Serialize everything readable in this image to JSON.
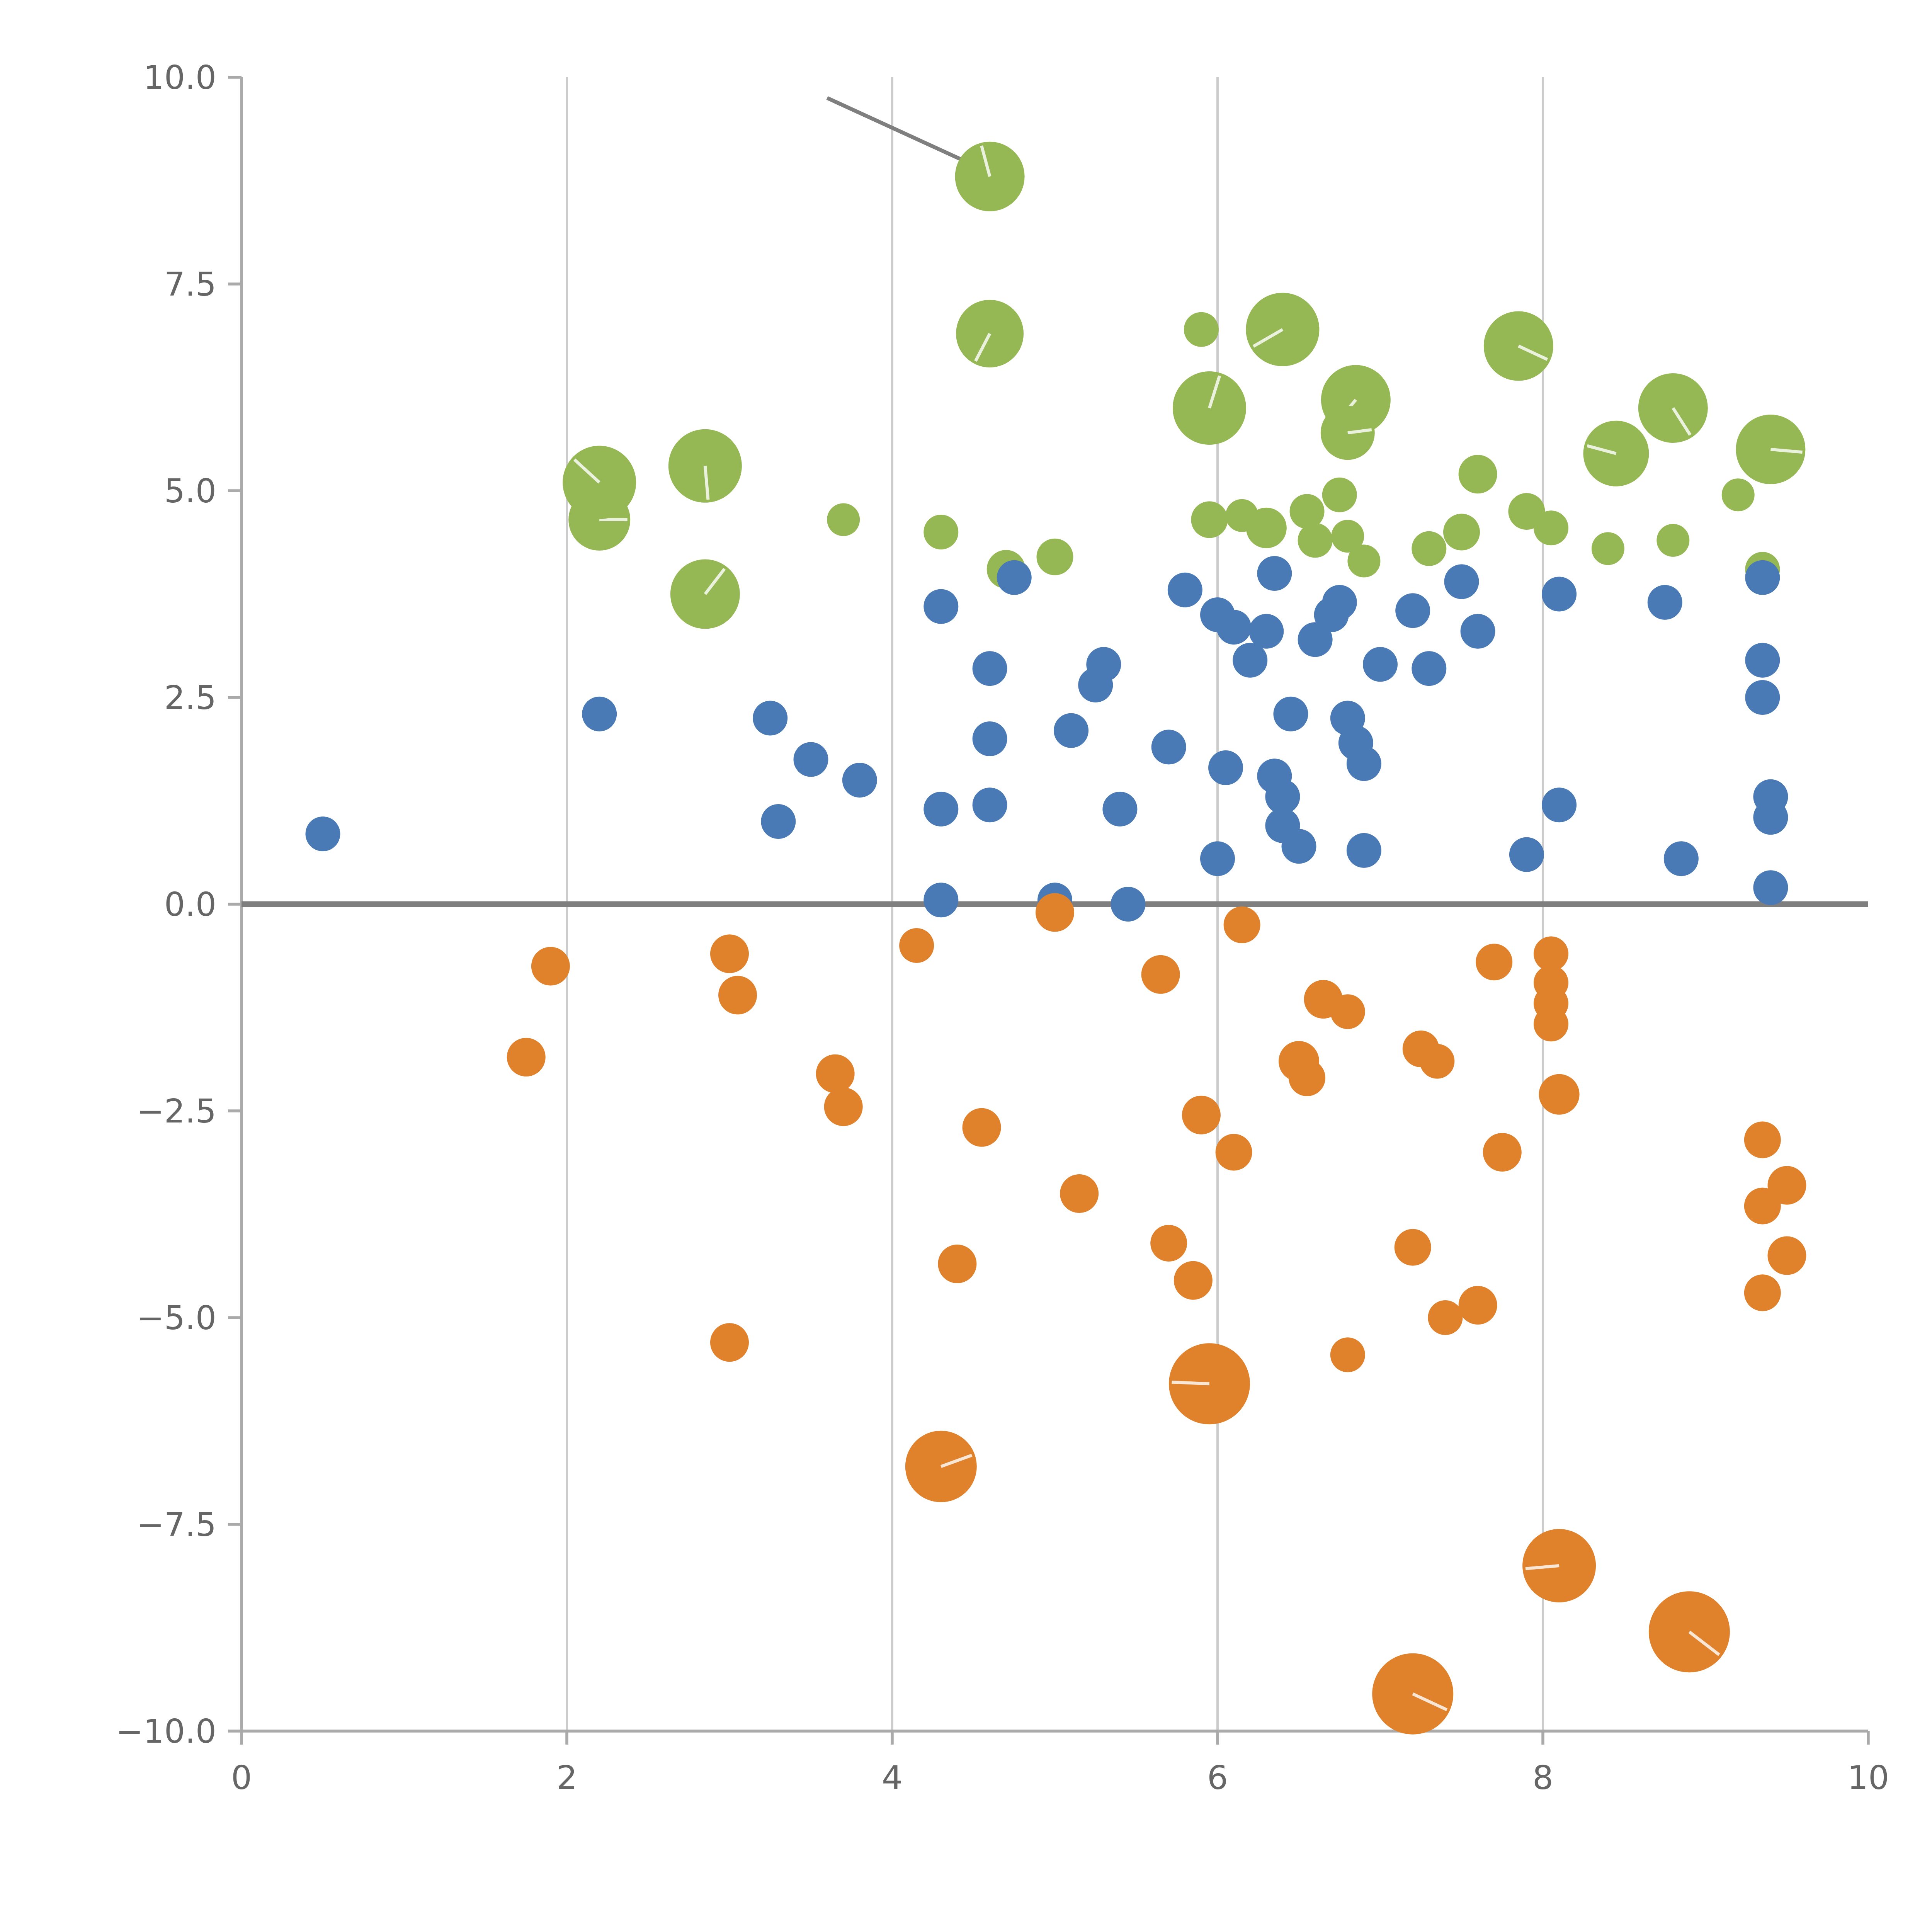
{
  "chart_data": {
    "type": "scatter",
    "title": "",
    "subtitle": "",
    "xlabel": "",
    "ylabel": "",
    "xlim": [
      0,
      10
    ],
    "ylim": [
      -10,
      10
    ],
    "grid": "vertical-only",
    "legend": "none",
    "x_ticks": [
      0,
      2,
      4,
      6,
      8,
      10
    ],
    "x_tick_labels": [
      "0",
      "2",
      "4",
      "6",
      "8",
      "10"
    ],
    "y_ticks": [
      -10,
      -7.5,
      -5,
      -2.5,
      0,
      2.5,
      5,
      7.5,
      10
    ],
    "y_tick_labels": [
      "−10.0",
      "−7.5",
      "−5.0",
      "−2.5",
      "0.0",
      "2.5",
      "5.0",
      "7.5",
      "10.0"
    ],
    "gridlines_x": [
      2,
      4,
      6,
      8
    ],
    "colors": {
      "grid": "#cccccc",
      "axis": "#aaaaaa",
      "tick_label": "#666666",
      "zero_line": "#7f7f7f",
      "annotation": "#7f7f7f",
      "green": "#95b854",
      "blue": "#4a7ab5",
      "orange": "#e0812c",
      "background": "#ffffff"
    },
    "zero_line": {
      "y": 0,
      "width": 3
    },
    "annotation_line": {
      "x1": 3.6,
      "y1": 9.75,
      "x2": 4.52,
      "y2": 8.92
    },
    "series": [
      {
        "name": "green",
        "color": "#95b854",
        "points": [
          [
            2.2,
            4.65,
            16
          ],
          [
            2.2,
            5.1,
            19
          ],
          [
            2.85,
            5.3,
            19
          ],
          [
            2.85,
            3.75,
            18
          ],
          [
            3.7,
            4.65,
            8.5
          ],
          [
            4.3,
            4.5,
            9
          ],
          [
            4.6,
            8.8,
            18
          ],
          [
            4.6,
            6.9,
            17.5
          ],
          [
            4.7,
            4.05,
            10
          ],
          [
            5.0,
            4.2,
            9.5
          ],
          [
            5.9,
            6.95,
            9
          ],
          [
            5.95,
            6.0,
            19
          ],
          [
            6.4,
            6.95,
            19
          ],
          [
            5.95,
            4.65,
            9.5
          ],
          [
            6.15,
            4.7,
            8.5
          ],
          [
            6.3,
            4.55,
            10.5
          ],
          [
            6.55,
            4.75,
            9
          ],
          [
            6.6,
            4.4,
            9
          ],
          [
            6.75,
            4.95,
            9
          ],
          [
            6.8,
            4.45,
            8.5
          ],
          [
            6.85,
            6.1,
            18
          ],
          [
            6.8,
            5.7,
            14
          ],
          [
            6.9,
            4.15,
            8.5
          ],
          [
            7.3,
            4.3,
            9
          ],
          [
            7.5,
            4.5,
            9.5
          ],
          [
            7.6,
            5.2,
            10
          ],
          [
            7.85,
            6.75,
            18
          ],
          [
            7.9,
            4.75,
            9.5
          ],
          [
            8.05,
            4.55,
            9
          ],
          [
            8.4,
            4.3,
            8.5
          ],
          [
            8.45,
            5.45,
            17
          ],
          [
            8.8,
            6.0,
            18
          ],
          [
            8.8,
            4.4,
            8.5
          ],
          [
            9.2,
            4.95,
            8.5
          ],
          [
            9.4,
            5.5,
            18
          ],
          [
            9.35,
            4.05,
            9
          ]
        ]
      },
      {
        "name": "blue",
        "color": "#4a7ab5",
        "points": [
          [
            0.5,
            0.85,
            9
          ],
          [
            2.2,
            2.3,
            9
          ],
          [
            3.25,
            2.25,
            9
          ],
          [
            3.3,
            1.0,
            9
          ],
          [
            3.5,
            1.75,
            9
          ],
          [
            3.8,
            1.5,
            9
          ],
          [
            4.3,
            3.6,
            9
          ],
          [
            4.3,
            1.15,
            9
          ],
          [
            4.3,
            0.05,
            9
          ],
          [
            4.6,
            2.85,
            9
          ],
          [
            4.6,
            2.0,
            9
          ],
          [
            4.6,
            1.2,
            9
          ],
          [
            4.75,
            3.95,
            9
          ],
          [
            5.0,
            0.05,
            9
          ],
          [
            5.1,
            2.1,
            9
          ],
          [
            5.25,
            2.65,
            9
          ],
          [
            5.3,
            2.9,
            9
          ],
          [
            5.4,
            1.15,
            9
          ],
          [
            5.45,
            0.0,
            9
          ],
          [
            5.7,
            1.9,
            9
          ],
          [
            5.8,
            3.8,
            9
          ],
          [
            6.0,
            3.5,
            9
          ],
          [
            6.0,
            0.55,
            9
          ],
          [
            6.05,
            1.65,
            9
          ],
          [
            6.1,
            3.35,
            9
          ],
          [
            6.2,
            2.95,
            9
          ],
          [
            6.3,
            3.3,
            9
          ],
          [
            6.35,
            4.0,
            9
          ],
          [
            6.35,
            1.55,
            9
          ],
          [
            6.4,
            1.3,
            9
          ],
          [
            6.4,
            0.95,
            9
          ],
          [
            6.45,
            2.3,
            9
          ],
          [
            6.5,
            0.7,
            9
          ],
          [
            6.6,
            3.2,
            9
          ],
          [
            6.7,
            3.5,
            9
          ],
          [
            6.75,
            3.65,
            9
          ],
          [
            6.8,
            2.25,
            9
          ],
          [
            6.85,
            1.95,
            9
          ],
          [
            6.9,
            1.7,
            9
          ],
          [
            6.9,
            0.65,
            9
          ],
          [
            7.0,
            2.9,
            9
          ],
          [
            7.2,
            3.55,
            9
          ],
          [
            7.3,
            2.85,
            9
          ],
          [
            7.5,
            3.9,
            9
          ],
          [
            7.6,
            3.3,
            9
          ],
          [
            7.9,
            0.6,
            9
          ],
          [
            8.1,
            3.75,
            9
          ],
          [
            8.1,
            1.2,
            9
          ],
          [
            8.75,
            3.65,
            9
          ],
          [
            8.85,
            0.55,
            9
          ],
          [
            9.35,
            3.95,
            9
          ],
          [
            9.35,
            2.95,
            9
          ],
          [
            9.35,
            2.5,
            9
          ],
          [
            9.4,
            1.3,
            9
          ],
          [
            9.4,
            1.05,
            9
          ],
          [
            9.4,
            0.2,
            9
          ]
        ]
      },
      {
        "name": "orange",
        "color": "#e0812c",
        "points": [
          [
            1.75,
            -1.85,
            10
          ],
          [
            1.9,
            -0.75,
            10
          ],
          [
            3.0,
            -0.6,
            10
          ],
          [
            3.05,
            -1.1,
            10
          ],
          [
            3.0,
            -5.3,
            10
          ],
          [
            3.65,
            -2.05,
            10
          ],
          [
            3.7,
            -2.45,
            10
          ],
          [
            4.15,
            -0.5,
            9
          ],
          [
            4.3,
            -6.8,
            18.5
          ],
          [
            4.4,
            -4.35,
            10
          ],
          [
            4.55,
            -2.7,
            10
          ],
          [
            5.0,
            -0.1,
            10
          ],
          [
            5.15,
            -3.5,
            10
          ],
          [
            5.65,
            -0.85,
            10
          ],
          [
            5.7,
            -4.1,
            9.5
          ],
          [
            5.85,
            -4.55,
            10
          ],
          [
            5.9,
            -2.55,
            10
          ],
          [
            5.95,
            -5.8,
            21
          ],
          [
            6.1,
            -3.0,
            9.5
          ],
          [
            6.15,
            -0.25,
            9.5
          ],
          [
            6.5,
            -1.9,
            10.5
          ],
          [
            6.55,
            -2.1,
            9.5
          ],
          [
            6.65,
            -1.15,
            10
          ],
          [
            6.8,
            -1.3,
            9
          ],
          [
            6.8,
            -5.45,
            9
          ],
          [
            7.2,
            -4.15,
            9.5
          ],
          [
            7.2,
            -9.55,
            21
          ],
          [
            7.25,
            -1.75,
            9.5
          ],
          [
            7.35,
            -1.9,
            9
          ],
          [
            7.4,
            -5.0,
            9
          ],
          [
            7.6,
            -4.85,
            10
          ],
          [
            7.7,
            -0.7,
            9.5
          ],
          [
            7.75,
            -3.0,
            10
          ],
          [
            8.05,
            -0.6,
            9
          ],
          [
            8.05,
            -0.95,
            9
          ],
          [
            8.05,
            -1.2,
            9
          ],
          [
            8.05,
            -1.45,
            9
          ],
          [
            8.1,
            -2.3,
            10.5
          ],
          [
            8.1,
            -8.0,
            19
          ],
          [
            8.9,
            -8.8,
            21
          ],
          [
            9.35,
            -2.85,
            9.5
          ],
          [
            9.5,
            -3.4,
            10
          ],
          [
            9.35,
            -3.65,
            9.5
          ],
          [
            9.5,
            -4.25,
            10
          ],
          [
            9.35,
            -4.7,
            9.5
          ]
        ]
      }
    ]
  }
}
